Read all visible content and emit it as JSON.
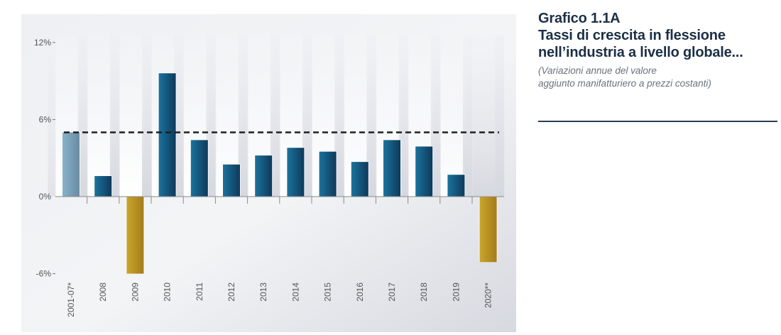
{
  "title_block": {
    "figure_number": "Grafico 1.1A",
    "title_lines": [
      "Tassi di crescita in flessione",
      "nell’industria a livello globale..."
    ],
    "subtitle_lines": [
      "(Variazioni annue del valore",
      "aggiunto manifatturiero a prezzi costanti)"
    ]
  },
  "colors": {
    "title": "#1c2f45",
    "bar_blue_light": "#1b729d",
    "bar_blue_dark": "#0e3a5a",
    "bar_pale_light": "#88b2cc",
    "bar_pale_dark": "#6a8aa2",
    "bar_gold_light": "#caa52a",
    "bar_gold_dark": "#a47c1b",
    "reference_line": "#1f1f1f",
    "axis": "#8a8a8a"
  },
  "chart_data": {
    "type": "bar",
    "title": "Tassi di crescita in flessione nell’industria a livello globale...",
    "subtitle": "(Variazioni annue del valore aggiunto manifatturiero a prezzi costanti)",
    "xlabel": "",
    "ylabel": "",
    "categories": [
      "2001-07*",
      "2008",
      "2009",
      "2010",
      "2011",
      "2012",
      "2013",
      "2014",
      "2015",
      "2016",
      "2017",
      "2018",
      "2019",
      "2020**"
    ],
    "values": [
      5.0,
      1.6,
      -6.0,
      9.6,
      4.4,
      2.5,
      3.2,
      3.8,
      3.5,
      2.7,
      4.4,
      3.9,
      1.7,
      -5.1
    ],
    "bar_styles": [
      "pale",
      "blue",
      "gold",
      "blue",
      "blue",
      "blue",
      "blue",
      "blue",
      "blue",
      "blue",
      "blue",
      "blue",
      "blue",
      "gold"
    ],
    "reference_line": {
      "value": 5.0,
      "style": "dashed",
      "label": ""
    },
    "ylim": [
      -6,
      12
    ],
    "yticks": [
      12,
      6,
      0,
      -6
    ],
    "ytick_labels": [
      "12%",
      "6%",
      "0%",
      "-6%"
    ],
    "grid": false,
    "legend": "none"
  }
}
